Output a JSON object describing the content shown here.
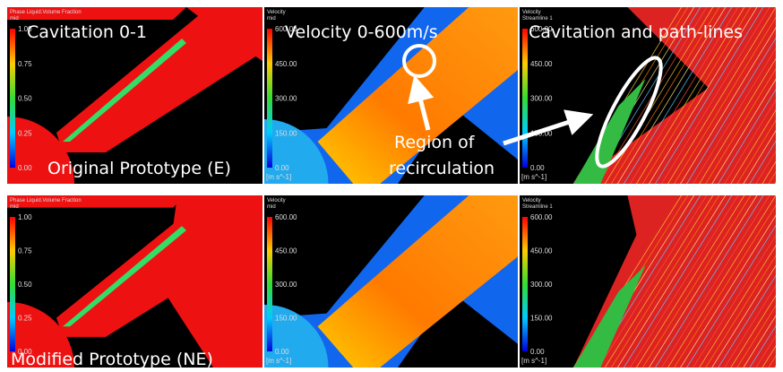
{
  "overlays": {
    "cavitation": "Cavitation 0-1",
    "velocity": "Velocity 0-600m/s",
    "pathlines": "Cavitation and path-lines",
    "recirculation": [
      "Region of",
      "recirculation"
    ],
    "original": "Original Prototype (E)",
    "modified": "Modified Prototype (NE)"
  },
  "rows": [
    {
      "panels": [
        {
          "title": [
            "Phase Liquid.Volume Fraction",
            "mid"
          ],
          "ticks": [
            "1.00",
            "0.75",
            "0.50",
            "0.25",
            "0.00"
          ]
        },
        {
          "title": [
            "Velocity",
            "mid"
          ],
          "ticks": [
            "600.00",
            "450.00",
            "300.00",
            "150.00",
            "0.00"
          ],
          "unit": "[m s^-1]"
        },
        {
          "title": [
            "Velocity",
            "Streamline 1"
          ],
          "ticks": [
            "600.00",
            "450.00",
            "300.00",
            "150.00",
            "0.00"
          ],
          "unit": "[m s^-1]"
        }
      ]
    },
    {
      "panels": [
        {
          "title": [
            "Phase Liquid.Volume Fraction",
            "mid"
          ],
          "ticks": [
            "1.00",
            "0.75",
            "0.50",
            "0.25",
            "0.00"
          ]
        },
        {
          "title": [
            "Velocity",
            "mid"
          ],
          "ticks": [
            "600.00",
            "450.00",
            "300.00",
            "150.00",
            "0.00"
          ],
          "unit": "[m s^-1]"
        },
        {
          "title": [
            "Velocity",
            "Streamline 1"
          ],
          "ticks": [
            "600.00",
            "450.00",
            "300.00",
            "150.00",
            "0.00"
          ],
          "unit": "[m s^-1]"
        }
      ]
    }
  ]
}
